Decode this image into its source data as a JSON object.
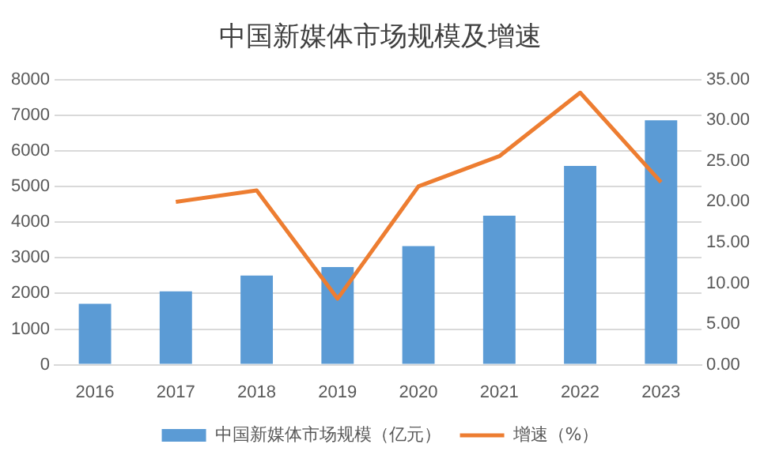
{
  "chart_data": {
    "type": "bar",
    "title": "中国新媒体市场规模及增速",
    "categories": [
      "2016",
      "2017",
      "2018",
      "2019",
      "2020",
      "2021",
      "2022",
      "2023"
    ],
    "series": [
      {
        "name": "中国新媒体市场规模（亿元）",
        "color": "#5b9bd5",
        "values": [
          1710,
          2060,
          2500,
          2740,
          3330,
          4180,
          5580,
          6860
        ]
      },
      {
        "name": "增速（%）",
        "type": "line",
        "axis": "y2",
        "color": "#ed7d31",
        "values": [
          null,
          20.0,
          21.4,
          8.1,
          21.9,
          25.6,
          33.4,
          22.4
        ]
      }
    ],
    "ylim": [
      0,
      8000
    ],
    "yticks": [
      0,
      1000,
      2000,
      3000,
      4000,
      5000,
      6000,
      7000,
      8000
    ],
    "y2lim": [
      0,
      35
    ],
    "y2ticks": [
      {
        "value": 0,
        "label": "0.00"
      },
      {
        "value": 5,
        "label": "5.00"
      },
      {
        "value": 10,
        "label": "10.00"
      },
      {
        "value": 15,
        "label": "15.00"
      },
      {
        "value": 20,
        "label": "20.00"
      },
      {
        "value": 25,
        "label": "25.00"
      },
      {
        "value": 30,
        "label": "30.00"
      },
      {
        "value": 35,
        "label": "35.00"
      }
    ],
    "grid": "y",
    "legend": "bottom",
    "marker": "none",
    "line_style": "solid"
  }
}
